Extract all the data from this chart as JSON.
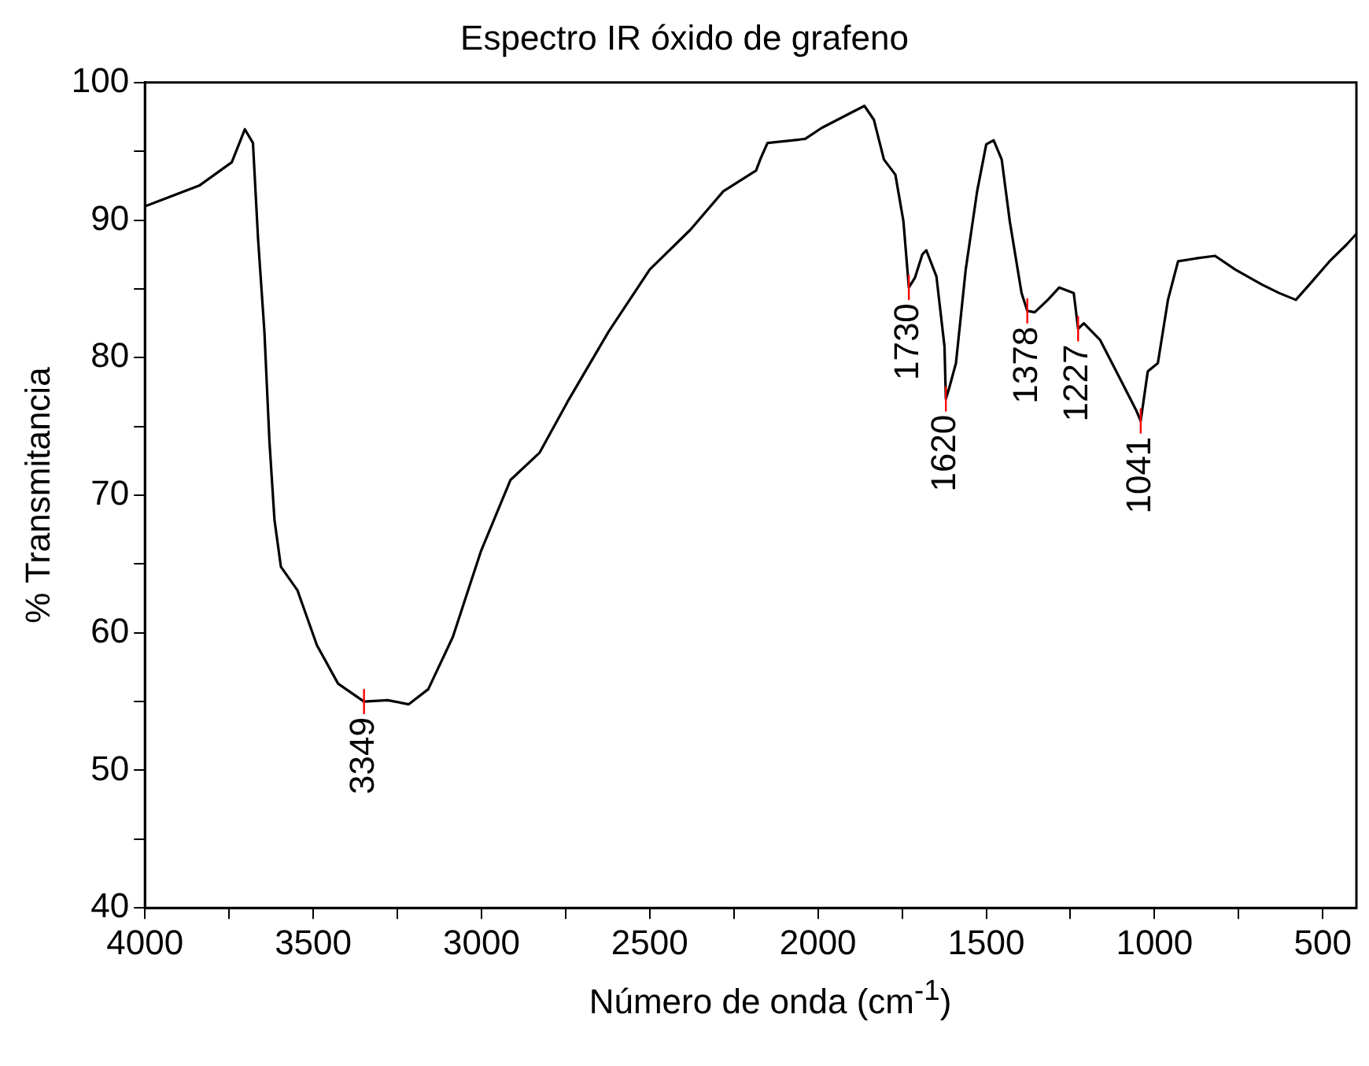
{
  "chart_data": {
    "type": "line",
    "title": "Espectro IR óxido de grafeno",
    "xlabel": "Número de onda (cm$^{-1}$)",
    "ylabel": "% Transmitancia",
    "xlim": [
      4000,
      400
    ],
    "ylim": [
      40,
      100
    ],
    "xticks": [
      4000,
      {
        "value": 3750,
        "label": null
      },
      3500,
      {
        "value": 3250,
        "label": null
      },
      3000,
      {
        "value": 2750,
        "label": null
      },
      2500,
      {
        "value": 2250,
        "label": null
      },
      2000,
      {
        "value": 1750,
        "label": null
      },
      1500,
      {
        "value": 1250,
        "label": null
      },
      1000,
      {
        "value": 750,
        "label": null
      },
      500
    ],
    "yticks": [
      40,
      {
        "value": 45,
        "label": null
      },
      50,
      {
        "value": 55,
        "label": null
      },
      60,
      {
        "value": 65,
        "label": null
      },
      70,
      {
        "value": 75,
        "label": null
      },
      80,
      {
        "value": 85,
        "label": null
      },
      90,
      {
        "value": 95,
        "label": null
      },
      100
    ],
    "grid": false,
    "legend": false,
    "marker": "none",
    "line_style": "solid",
    "series": [
      {
        "color": "#000000",
        "x": [
          4000,
          3839,
          3742,
          3703,
          3679,
          3664,
          3645,
          3630,
          3615,
          3596,
          3547,
          3489,
          3426,
          3349,
          3279,
          3216,
          3158,
          3085,
          3002,
          2914,
          2827,
          2744,
          2622,
          2500,
          2379,
          2281,
          2184,
          2170,
          2150,
          2038,
          1989,
          1902,
          1862,
          1834,
          1804,
          1770,
          1746,
          1730,
          1712,
          1690,
          1678,
          1648,
          1624,
          1620,
          1610,
          1590,
          1561,
          1527,
          1500,
          1478,
          1454,
          1430,
          1395,
          1378,
          1356,
          1317,
          1283,
          1240,
          1227,
          1210,
          1162,
          1103,
          1055,
          1041,
          1020,
          990,
          960,
          930,
          880,
          820,
          760,
          680,
          630,
          580,
          540,
          480,
          430,
          400
        ],
        "values": [
          91.0,
          92.5,
          94.2,
          96.6,
          95.6,
          88.7,
          81.9,
          73.9,
          68.2,
          64.8,
          63.1,
          59.1,
          56.3,
          55.0,
          55.1,
          54.8,
          55.9,
          59.7,
          65.9,
          71.1,
          73.1,
          76.8,
          81.9,
          86.4,
          89.3,
          92.1,
          93.6,
          94.5,
          95.6,
          95.9,
          96.7,
          97.8,
          98.3,
          97.3,
          94.4,
          93.3,
          89.9,
          85.1,
          85.8,
          87.5,
          87.8,
          85.9,
          80.8,
          77.0,
          77.8,
          79.6,
          86.4,
          92.1,
          95.5,
          95.8,
          94.4,
          89.9,
          84.7,
          83.4,
          83.3,
          84.2,
          85.1,
          84.7,
          82.1,
          82.5,
          81.3,
          78.5,
          76.2,
          75.4,
          79.0,
          79.6,
          84.2,
          87.0,
          87.2,
          87.4,
          86.4,
          85.3,
          84.7,
          84.2,
          85.3,
          87.0,
          88.2,
          89.0
        ]
      }
    ],
    "annotations": [
      {
        "text": "3349",
        "x": 3349,
        "y": 55.0
      },
      {
        "text": "1730",
        "x": 1730,
        "y": 85.1
      },
      {
        "text": "1620",
        "x": 1620,
        "y": 77.0
      },
      {
        "text": "1378",
        "x": 1378,
        "y": 83.4
      },
      {
        "text": "1227",
        "x": 1227,
        "y": 82.1
      },
      {
        "text": "1041",
        "x": 1041,
        "y": 75.4
      }
    ]
  }
}
